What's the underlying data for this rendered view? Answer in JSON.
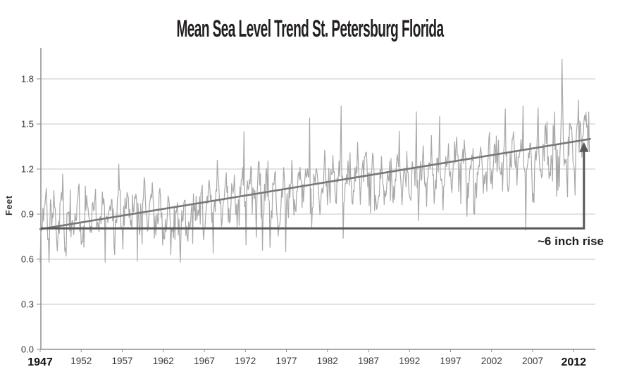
{
  "chart_data": {
    "type": "line",
    "title": "Mean Sea Level Trend St. Petersburg Florida",
    "xlabel": "",
    "ylabel": "Feet",
    "xlim": [
      1947,
      2014.6
    ],
    "ylim": [
      0.0,
      2.0
    ],
    "grid": "horizontal",
    "legend": "none",
    "y_ticks": [
      0.0,
      0.3,
      0.6,
      0.9,
      1.2,
      1.5,
      1.8
    ],
    "x_ticks": [
      1947,
      1952,
      1957,
      1962,
      1967,
      1972,
      1977,
      1982,
      1987,
      1992,
      1997,
      2002,
      2007,
      2012
    ],
    "x_ticks_emphasized": [
      1947,
      2012
    ],
    "series": [
      {
        "name": "Monthly mean sea level (feet)",
        "color": "#a8a8a8",
        "start_year": 1947,
        "end_year": 2014,
        "annual_means": [
          0.88,
          0.86,
          0.85,
          0.83,
          0.82,
          0.84,
          0.89,
          0.85,
          0.86,
          0.84,
          0.92,
          0.95,
          0.95,
          0.93,
          0.88,
          0.85,
          0.83,
          0.84,
          0.88,
          0.91,
          0.9,
          0.94,
          1.0,
          1.0,
          0.98,
          1.04,
          1.07,
          1.02,
          1.0,
          0.97,
          0.98,
          1.04,
          1.09,
          1.06,
          1.02,
          1.11,
          1.14,
          1.1,
          1.12,
          1.14,
          1.16,
          1.1,
          1.08,
          1.12,
          1.15,
          1.16,
          1.14,
          1.16,
          1.2,
          1.14,
          1.19,
          1.22,
          1.18,
          1.14,
          1.2,
          1.25,
          1.26,
          1.22,
          1.27,
          1.22,
          1.22,
          1.29,
          1.31,
          1.36,
          1.3,
          1.38,
          1.44
        ]
      },
      {
        "name": "Linear trend",
        "color": "#76777a",
        "x": [
          1947,
          2014
        ],
        "y": [
          0.8,
          1.4
        ]
      }
    ],
    "synthesis": {
      "seed": 7,
      "seasonal": [
        -0.08,
        -0.12,
        -0.07,
        -0.02,
        0.02,
        0.05,
        0.08,
        0.12,
        0.15,
        0.11,
        0.0,
        -0.06
      ],
      "random_amplitude": 0.2,
      "dip_probability": 0.08,
      "dip_extra": [
        0.1,
        0.28
      ],
      "spike_probability": 0.05,
      "spike_extra": [
        0.06,
        0.16
      ],
      "clamp": [
        0.58,
        1.7
      ]
    },
    "outliers": [
      {
        "x": 1950.2,
        "y": 0.62
      },
      {
        "x": 1956.1,
        "y": 0.63
      },
      {
        "x": 1956.7,
        "y": 1.06
      },
      {
        "x": 1962.9,
        "y": 0.63
      },
      {
        "x": 1968.1,
        "y": 0.64
      },
      {
        "x": 1971.8,
        "y": 1.45
      },
      {
        "x": 1974.1,
        "y": 0.66
      },
      {
        "x": 1976.9,
        "y": 0.65
      },
      {
        "x": 1979.8,
        "y": 1.54
      },
      {
        "x": 1983.7,
        "y": 1.62
      },
      {
        "x": 1992.8,
        "y": 1.58
      },
      {
        "x": 1995.7,
        "y": 1.55
      },
      {
        "x": 2003.7,
        "y": 1.6
      },
      {
        "x": 2005.8,
        "y": 1.62
      },
      {
        "x": 2010.5,
        "y": 1.6
      },
      {
        "x": 2010.58,
        "y": 1.93
      },
      {
        "x": 2010.67,
        "y": 1.62
      },
      {
        "x": 2012.6,
        "y": 1.66
      }
    ],
    "annotation": {
      "label": "~6 inch rise",
      "baseline_ft": 0.805,
      "arrow_year": 2013.25
    }
  },
  "colors": {
    "background": "#ffffff",
    "gridline": "#c7c7c7",
    "axis": "#8f8f8f",
    "tick_label": "#3a3a3a",
    "emphasis_tick_label": "#111111",
    "data_line": "#a8a8a8",
    "trend_line": "#76777a",
    "arrow": "#58585a",
    "title": "#231f20",
    "annotation_text": "#231f20"
  }
}
